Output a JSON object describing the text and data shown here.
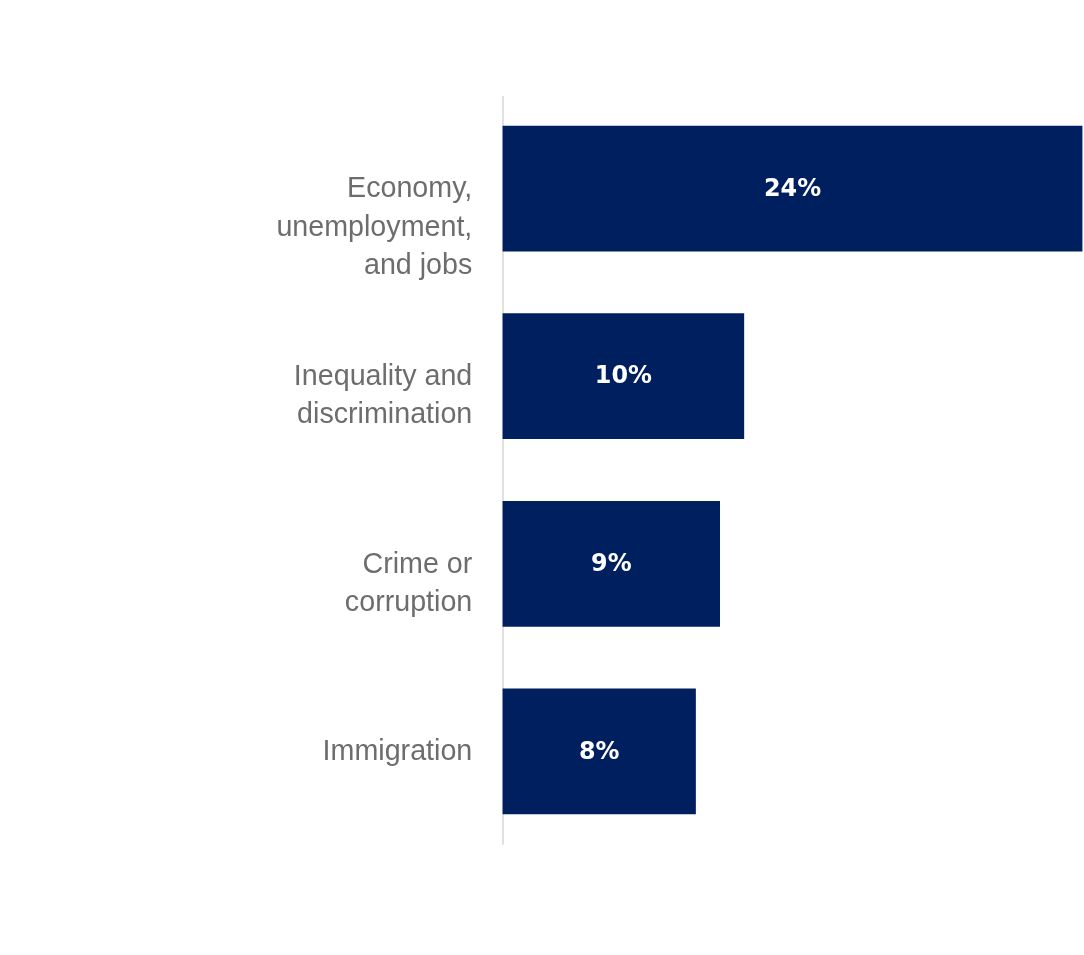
{
  "chart_data": {
    "type": "bar",
    "orientation": "horizontal",
    "categories": [
      "Economy,\nunemployment,\nand jobs",
      "Inequality and\ndiscrimination",
      "Crime or\ncorruption",
      "Immigration"
    ],
    "values": [
      24,
      10,
      9,
      8
    ],
    "color": "#001f5f",
    "value_labels": [
      "24%",
      "10%",
      "9%",
      "8%"
    ],
    "grid": false,
    "tick_labels": "y"
  }
}
